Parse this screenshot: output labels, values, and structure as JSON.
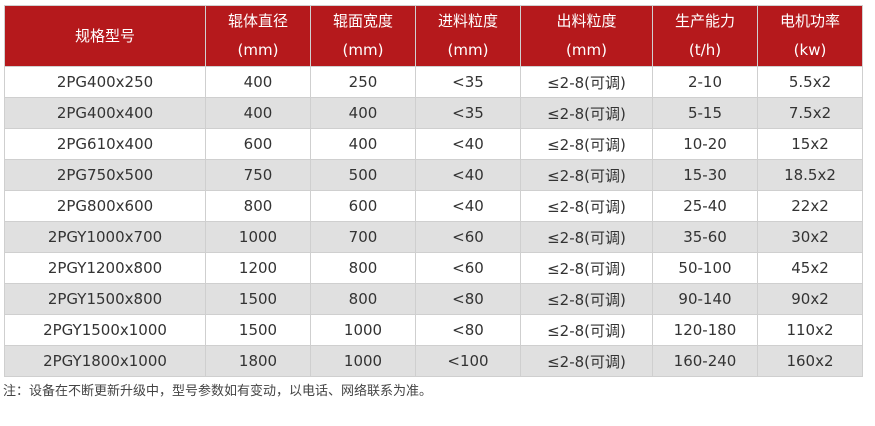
{
  "headers": [
    {
      "l1": "规格型号",
      "l2": ""
    },
    {
      "l1": "辊体直径",
      "l2": "(mm)"
    },
    {
      "l1": "辊面宽度",
      "l2": "(mm)"
    },
    {
      "l1": "进料粒度",
      "l2": "(mm)"
    },
    {
      "l1": "出料粒度",
      "l2": "(mm)"
    },
    {
      "l1": "生产能力",
      "l2": "(t/h)"
    },
    {
      "l1": "电机功率",
      "l2": "(kw)"
    }
  ],
  "rows": [
    [
      "2PG400x250",
      "400",
      "250",
      "<35",
      "≤2-8(可调)",
      "2-10",
      "5.5x2"
    ],
    [
      "2PG400x400",
      "400",
      "400",
      "<35",
      "≤2-8(可调)",
      "5-15",
      "7.5x2"
    ],
    [
      "2PG610x400",
      "600",
      "400",
      "<40",
      "≤2-8(可调)",
      "10-20",
      "15x2"
    ],
    [
      "2PG750x500",
      "750",
      "500",
      "<40",
      "≤2-8(可调)",
      "15-30",
      "18.5x2"
    ],
    [
      "2PG800x600",
      "800",
      "600",
      "<40",
      "≤2-8(可调)",
      "25-40",
      "22x2"
    ],
    [
      "2PGY1000x700",
      "1000",
      "700",
      "<60",
      "≤2-8(可调)",
      "35-60",
      "30x2"
    ],
    [
      "2PGY1200x800",
      "1200",
      "800",
      "<60",
      "≤2-8(可调)",
      "50-100",
      "45x2"
    ],
    [
      "2PGY1500x800",
      "1500",
      "800",
      "<80",
      "≤2-8(可调)",
      "90-140",
      "90x2"
    ],
    [
      "2PGY1500x1000",
      "1500",
      "1000",
      "<80",
      "≤2-8(可调)",
      "120-180",
      "110x2"
    ],
    [
      "2PGY1800x1000",
      "1800",
      "1000",
      "<100",
      "≤2-8(可调)",
      "160-240",
      "160x2"
    ]
  ],
  "note": "注：设备在不断更新升级中，型号参数如有变动，以电话、网络联系为准。",
  "colors": {
    "header": "#b5191c",
    "alt_row": "#e0e0e0"
  }
}
